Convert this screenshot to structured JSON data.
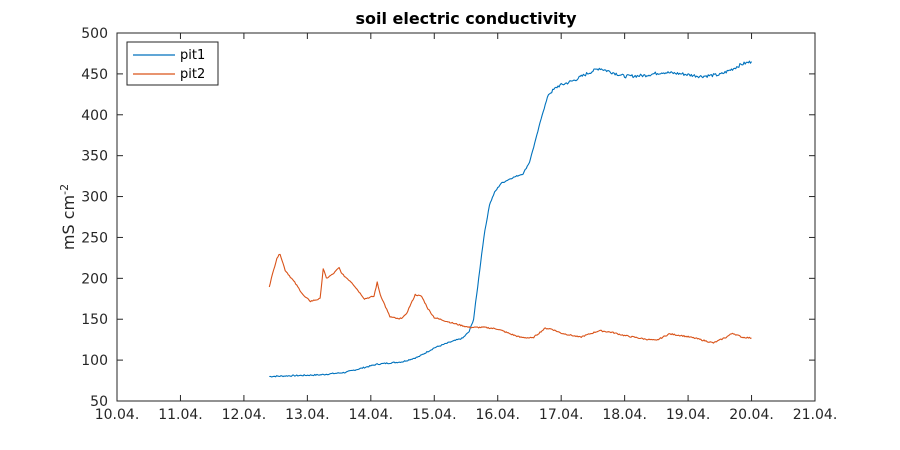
{
  "chart_data": {
    "type": "line",
    "title": "soil electric conductivity",
    "xlabel": "",
    "ylabel": {
      "base": "mS cm",
      "sup": "-2"
    },
    "x_ticks": [
      "10.04.",
      "11.04.",
      "12.04.",
      "13.04.",
      "14.04.",
      "15.04.",
      "16.04.",
      "17.04.",
      "18.04.",
      "19.04.",
      "20.04.",
      "21.04."
    ],
    "xlim_days": [
      10,
      21
    ],
    "ylim": [
      50,
      500
    ],
    "y_ticks": [
      50,
      100,
      150,
      200,
      250,
      300,
      350,
      400,
      450,
      500
    ],
    "grid": false,
    "legend_position": "top-left",
    "series": [
      {
        "name": "pit1",
        "color": "#0072BD",
        "points": [
          [
            12.4,
            80
          ],
          [
            12.8,
            81
          ],
          [
            13.2,
            82
          ],
          [
            13.6,
            85
          ],
          [
            13.9,
            91
          ],
          [
            14.1,
            95
          ],
          [
            14.5,
            98
          ],
          [
            14.75,
            104
          ],
          [
            15.0,
            115
          ],
          [
            15.25,
            122
          ],
          [
            15.45,
            127
          ],
          [
            15.55,
            135
          ],
          [
            15.62,
            150
          ],
          [
            15.7,
            200
          ],
          [
            15.78,
            250
          ],
          [
            15.87,
            290
          ],
          [
            15.95,
            305
          ],
          [
            16.05,
            316
          ],
          [
            16.2,
            322
          ],
          [
            16.4,
            328
          ],
          [
            16.5,
            342
          ],
          [
            16.6,
            370
          ],
          [
            16.7,
            400
          ],
          [
            16.8,
            425
          ],
          [
            16.95,
            435
          ],
          [
            17.2,
            442
          ],
          [
            17.4,
            450
          ],
          [
            17.6,
            457
          ],
          [
            17.8,
            452
          ],
          [
            18.0,
            447
          ],
          [
            18.3,
            448
          ],
          [
            18.6,
            452
          ],
          [
            18.9,
            450
          ],
          [
            19.2,
            447
          ],
          [
            19.5,
            449
          ],
          [
            19.7,
            456
          ],
          [
            19.85,
            462
          ],
          [
            20.0,
            465
          ]
        ]
      },
      {
        "name": "pit2",
        "color": "#D95319",
        "points": [
          [
            12.4,
            190
          ],
          [
            12.45,
            205
          ],
          [
            12.52,
            225
          ],
          [
            12.57,
            230
          ],
          [
            12.65,
            210
          ],
          [
            12.8,
            195
          ],
          [
            12.95,
            178
          ],
          [
            13.05,
            172
          ],
          [
            13.2,
            175
          ],
          [
            13.25,
            212
          ],
          [
            13.3,
            200
          ],
          [
            13.4,
            205
          ],
          [
            13.5,
            213
          ],
          [
            13.55,
            205
          ],
          [
            13.7,
            195
          ],
          [
            13.9,
            175
          ],
          [
            14.05,
            178
          ],
          [
            14.1,
            195
          ],
          [
            14.15,
            180
          ],
          [
            14.3,
            153
          ],
          [
            14.45,
            150
          ],
          [
            14.55,
            155
          ],
          [
            14.7,
            180
          ],
          [
            14.8,
            178
          ],
          [
            14.9,
            163
          ],
          [
            15.0,
            152
          ],
          [
            15.3,
            145
          ],
          [
            15.55,
            140
          ],
          [
            15.8,
            140
          ],
          [
            16.0,
            138
          ],
          [
            16.2,
            132
          ],
          [
            16.35,
            128
          ],
          [
            16.55,
            127
          ],
          [
            16.75,
            139
          ],
          [
            16.85,
            138
          ],
          [
            17.0,
            133
          ],
          [
            17.3,
            128
          ],
          [
            17.6,
            136
          ],
          [
            17.8,
            134
          ],
          [
            18.0,
            130
          ],
          [
            18.3,
            126
          ],
          [
            18.5,
            124
          ],
          [
            18.7,
            132
          ],
          [
            18.9,
            130
          ],
          [
            19.1,
            127
          ],
          [
            19.4,
            121
          ],
          [
            19.6,
            128
          ],
          [
            19.7,
            133
          ],
          [
            19.85,
            128
          ],
          [
            20.0,
            127
          ]
        ]
      }
    ]
  }
}
